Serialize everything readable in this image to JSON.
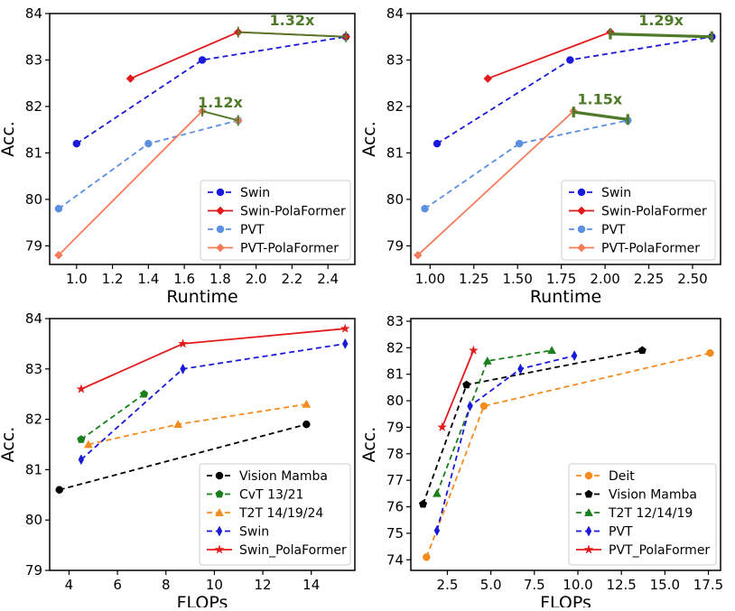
{
  "chart_data": [
    {
      "type": "line",
      "xlabel": "Runtime",
      "ylabel": "Acc.",
      "xlim": [
        0.85,
        2.55
      ],
      "ylim": [
        78.6,
        84.0
      ],
      "xticks": [
        1.0,
        1.2,
        1.4,
        1.6,
        1.8,
        2.0,
        2.2,
        2.4
      ],
      "xtick_labels": [
        "1.0",
        "1.2",
        "1.4",
        "1.6",
        "1.8",
        "2.0",
        "2.2",
        "2.4"
      ],
      "yticks": [
        79,
        80,
        81,
        82,
        83,
        84
      ],
      "ytick_labels": [
        "79",
        "80",
        "81",
        "82",
        "83",
        "84"
      ],
      "legend_position": "bottom-right",
      "series": [
        {
          "name": "Swin",
          "color": "#1a1adb",
          "dash": "dashed",
          "marker": "circle",
          "x": [
            1.0,
            1.7,
            2.5
          ],
          "y": [
            81.2,
            83.0,
            83.5
          ]
        },
        {
          "name": "Swin-PolaFormer",
          "color": "#e31a1c",
          "dash": "solid",
          "marker": "diamond",
          "x": [
            1.3,
            1.9,
            2.5
          ],
          "y": [
            82.6,
            83.6,
            83.5
          ]
        },
        {
          "name": "PVT",
          "color": "#5b8fe0",
          "dash": "dashed",
          "marker": "circle",
          "x": [
            0.9,
            1.4,
            1.9
          ],
          "y": [
            79.8,
            81.2,
            81.7
          ]
        },
        {
          "name": "PVT-PolaFormer",
          "color": "#f47c5c",
          "dash": "solid",
          "marker": "diamond",
          "x": [
            0.9,
            1.7,
            1.9
          ],
          "y": [
            78.8,
            81.9,
            81.7
          ]
        }
      ],
      "annotations": [
        {
          "text": "1.32x",
          "color": "#4f7a28",
          "x1": 1.9,
          "y1": 83.6,
          "x2": 2.5,
          "y2": 83.5,
          "tx": 2.2,
          "ty": 83.75
        },
        {
          "text": "1.12x",
          "color": "#4f7a28",
          "x1": 1.7,
          "y1": 81.9,
          "x2": 1.9,
          "y2": 81.7,
          "tx": 1.8,
          "ty": 81.98
        }
      ]
    },
    {
      "type": "line",
      "xlabel": "Runtime",
      "ylabel": "Acc.",
      "xlim": [
        0.89,
        2.66
      ],
      "ylim": [
        78.6,
        84.0
      ],
      "xticks": [
        1.0,
        1.25,
        1.5,
        1.75,
        2.0,
        2.25,
        2.5
      ],
      "xtick_labels": [
        "1.00",
        "1.25",
        "1.50",
        "1.75",
        "2.00",
        "2.25",
        "2.50"
      ],
      "yticks": [
        79,
        80,
        81,
        82,
        83,
        84
      ],
      "ytick_labels": [
        "79",
        "80",
        "81",
        "82",
        "83",
        "84"
      ],
      "legend_position": "bottom-right",
      "series": [
        {
          "name": "Swin",
          "color": "#1a1adb",
          "dash": "dashed",
          "marker": "circle",
          "x": [
            1.04,
            1.8,
            2.61
          ],
          "y": [
            81.2,
            83.0,
            83.5
          ]
        },
        {
          "name": "Swin-PolaFormer",
          "color": "#e31a1c",
          "dash": "solid",
          "marker": "diamond",
          "x": [
            1.33,
            2.03
          ],
          "y": [
            82.6,
            83.6
          ]
        },
        {
          "name": "PVT",
          "color": "#5b8fe0",
          "dash": "dashed",
          "marker": "circle",
          "x": [
            0.97,
            1.51,
            2.13
          ],
          "y": [
            79.8,
            81.2,
            81.7
          ]
        },
        {
          "name": "PVT-PolaFormer",
          "color": "#f47c5c",
          "dash": "solid",
          "marker": "diamond",
          "x": [
            0.93,
            1.82
          ],
          "y": [
            78.8,
            81.9
          ]
        }
      ],
      "annotations": [
        {
          "text": "1.29x",
          "color": "#4f7a28",
          "x1": 2.03,
          "y1": 83.56,
          "x2": 2.61,
          "y2": 83.5,
          "tx": 2.32,
          "ty": 83.75
        },
        {
          "text": "1.15x",
          "color": "#4f7a28",
          "x1": 1.82,
          "y1": 81.88,
          "x2": 2.13,
          "y2": 81.72,
          "tx": 1.97,
          "ty": 82.05
        }
      ]
    },
    {
      "type": "line",
      "xlabel": "FLOPs",
      "ylabel": "Acc.",
      "xlim": [
        3.2,
        15.8
      ],
      "ylim": [
        79.0,
        84.0
      ],
      "xticks": [
        4,
        6,
        8,
        10,
        12,
        14
      ],
      "xtick_labels": [
        "4",
        "6",
        "8",
        "10",
        "12",
        "14"
      ],
      "yticks": [
        79,
        80,
        81,
        82,
        83,
        84
      ],
      "ytick_labels": [
        "79",
        "80",
        "81",
        "82",
        "83",
        "84"
      ],
      "legend_position": "bottom-right",
      "series": [
        {
          "name": "Vision Mamba",
          "color": "#000000",
          "dash": "dashed",
          "marker": "circle",
          "x": [
            3.6,
            13.8
          ],
          "y": [
            80.6,
            81.9
          ]
        },
        {
          "name": "CvT 13/21",
          "color": "#1a7f1a",
          "dash": "dashed",
          "marker": "pentagon",
          "x": [
            4.5,
            7.1
          ],
          "y": [
            81.6,
            82.5
          ]
        },
        {
          "name": "T2T 14/19/24",
          "color": "#f28c1e",
          "dash": "dashed",
          "marker": "triangle",
          "x": [
            4.8,
            8.5,
            13.8
          ],
          "y": [
            81.5,
            81.9,
            82.3
          ]
        },
        {
          "name": "Swin",
          "color": "#1a1adb",
          "dash": "dashed",
          "marker": "thin-diamond",
          "x": [
            4.5,
            8.7,
            15.4
          ],
          "y": [
            81.2,
            83.0,
            83.5
          ]
        },
        {
          "name": "Swin_PolaFormer",
          "color": "#e31a1c",
          "dash": "solid",
          "marker": "star",
          "x": [
            4.5,
            8.7,
            15.4
          ],
          "y": [
            82.6,
            83.5,
            83.8
          ]
        }
      ]
    },
    {
      "type": "line",
      "xlabel": "FLOPs",
      "ylabel": "Acc.",
      "xlim": [
        0.4,
        18.2
      ],
      "ylim": [
        73.6,
        83.1
      ],
      "xticks": [
        2.5,
        5.0,
        7.5,
        10.0,
        12.5,
        15.0,
        17.5
      ],
      "xtick_labels": [
        "2.5",
        "5.0",
        "7.5",
        "10.0",
        "12.5",
        "15.0",
        "17.5"
      ],
      "yticks": [
        74,
        75,
        76,
        77,
        78,
        79,
        80,
        81,
        82,
        83
      ],
      "ytick_labels": [
        "74",
        "75",
        "76",
        "77",
        "78",
        "79",
        "80",
        "81",
        "82",
        "83"
      ],
      "legend_position": "bottom-right",
      "series": [
        {
          "name": "Deit",
          "color": "#f28c1e",
          "dash": "dashed",
          "marker": "circle",
          "x": [
            1.3,
            4.6,
            17.6
          ],
          "y": [
            74.1,
            79.8,
            81.8
          ]
        },
        {
          "name": "Vision Mamba",
          "color": "#000000",
          "dash": "dashed",
          "marker": "pentagon",
          "x": [
            1.1,
            3.6,
            13.7
          ],
          "y": [
            76.1,
            80.6,
            81.9
          ]
        },
        {
          "name": "T2T 12/14/19",
          "color": "#1a7f1a",
          "dash": "dashed",
          "marker": "triangle",
          "x": [
            1.9,
            4.8,
            8.5
          ],
          "y": [
            76.5,
            81.5,
            81.9
          ]
        },
        {
          "name": "PVT",
          "color": "#1a1adb",
          "dash": "dashed",
          "marker": "thin-diamond",
          "x": [
            1.9,
            3.8,
            6.7,
            9.8
          ],
          "y": [
            75.1,
            79.8,
            81.2,
            81.7
          ]
        },
        {
          "name": "PVT_PolaFormer",
          "color": "#e31a1c",
          "dash": "solid",
          "marker": "star",
          "x": [
            2.2,
            4.0
          ],
          "y": [
            79.0,
            81.9
          ]
        }
      ]
    }
  ]
}
